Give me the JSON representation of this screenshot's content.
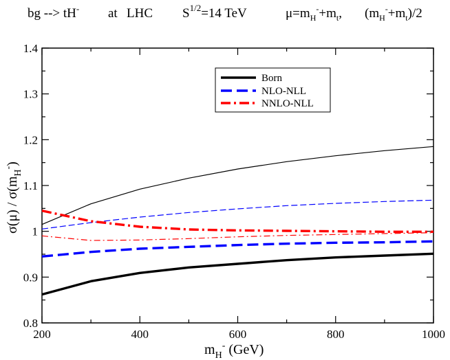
{
  "title": {
    "process": "bg --> tH",
    "process_sup": "-",
    "at": "at",
    "collider": "LHC",
    "energy_base": "S",
    "energy_sup": "1/2",
    "energy_value": "=14 TeV",
    "scale_mu": "μ=m",
    "scale_h_sub": "H",
    "scale_h_sup": "-",
    "scale_plus": "+m",
    "scale_t_sub": "t",
    "scale_comma": ",",
    "scale2_open": "(m",
    "scale2_h_sub": "H",
    "scale2_h_sup": "-",
    "scale2_plus": "+m",
    "scale2_t_sub": "t",
    "scale2_close": ")/2"
  },
  "chart_data": {
    "type": "line",
    "xlabel": {
      "main": "m",
      "sub": "H",
      "sup": "-",
      "unit": " (GeV)"
    },
    "ylabel": {
      "main": "σ(μ) / σ(m",
      "sub": "H",
      "sup": "-",
      "close": ")"
    },
    "xlim": [
      200,
      1000
    ],
    "ylim": [
      0.8,
      1.4
    ],
    "xticks": [
      200,
      400,
      600,
      800,
      1000
    ],
    "yticks": [
      0.8,
      0.9,
      1.0,
      1.1,
      1.2,
      1.3,
      1.4
    ],
    "ytick_labels": [
      "0.8",
      "0.9",
      "1",
      "1.1",
      "1.2",
      "1.3",
      "1.4"
    ],
    "legend": [
      {
        "label": "Born",
        "color": "#000000",
        "style": "solid"
      },
      {
        "label": "NLO-NLL",
        "color": "#0000ff",
        "style": "dashed"
      },
      {
        "label": "NNLO-NLL",
        "color": "#ff0000",
        "style": "dashdot"
      }
    ],
    "series": [
      {
        "name": "Born",
        "scale": "mH+mt",
        "color": "#000000",
        "style": "solid",
        "width": "thick",
        "x": [
          200,
          300,
          400,
          500,
          600,
          700,
          800,
          900,
          1000
        ],
        "y": [
          0.862,
          0.891,
          0.909,
          0.921,
          0.929,
          0.937,
          0.943,
          0.947,
          0.951
        ]
      },
      {
        "name": "Born",
        "scale": "(mH+mt)/2",
        "color": "#000000",
        "style": "solid",
        "width": "thin",
        "x": [
          200,
          300,
          400,
          500,
          600,
          700,
          800,
          900,
          1000
        ],
        "y": [
          1.015,
          1.06,
          1.092,
          1.116,
          1.136,
          1.152,
          1.165,
          1.176,
          1.185
        ]
      },
      {
        "name": "NLO-NLL",
        "scale": "mH+mt",
        "color": "#0000ff",
        "style": "dashed",
        "width": "thick",
        "x": [
          200,
          300,
          400,
          500,
          600,
          700,
          800,
          900,
          1000
        ],
        "y": [
          0.945,
          0.955,
          0.962,
          0.966,
          0.97,
          0.973,
          0.975,
          0.976,
          0.978
        ]
      },
      {
        "name": "NLO-NLL",
        "scale": "(mH+mt)/2",
        "color": "#0000ff",
        "style": "dashed",
        "width": "thin",
        "x": [
          200,
          300,
          400,
          500,
          600,
          700,
          800,
          900,
          1000
        ],
        "y": [
          1.005,
          1.019,
          1.031,
          1.041,
          1.049,
          1.056,
          1.061,
          1.065,
          1.068
        ]
      },
      {
        "name": "NNLO-NLL",
        "scale": "mH+mt",
        "color": "#ff0000",
        "style": "dashdot",
        "width": "thick",
        "x": [
          200,
          300,
          400,
          500,
          600,
          700,
          800,
          900,
          1000
        ],
        "y": [
          1.045,
          1.022,
          1.01,
          1.004,
          1.002,
          1.001,
          1.0,
          0.999,
          0.999
        ]
      },
      {
        "name": "NNLO-NLL",
        "scale": "(mH+mt)/2",
        "color": "#ff0000",
        "style": "dashdot",
        "width": "thin",
        "x": [
          200,
          300,
          400,
          500,
          600,
          700,
          800,
          900,
          1000
        ],
        "y": [
          0.99,
          0.98,
          0.981,
          0.984,
          0.988,
          0.991,
          0.993,
          0.995,
          0.997
        ]
      }
    ]
  }
}
